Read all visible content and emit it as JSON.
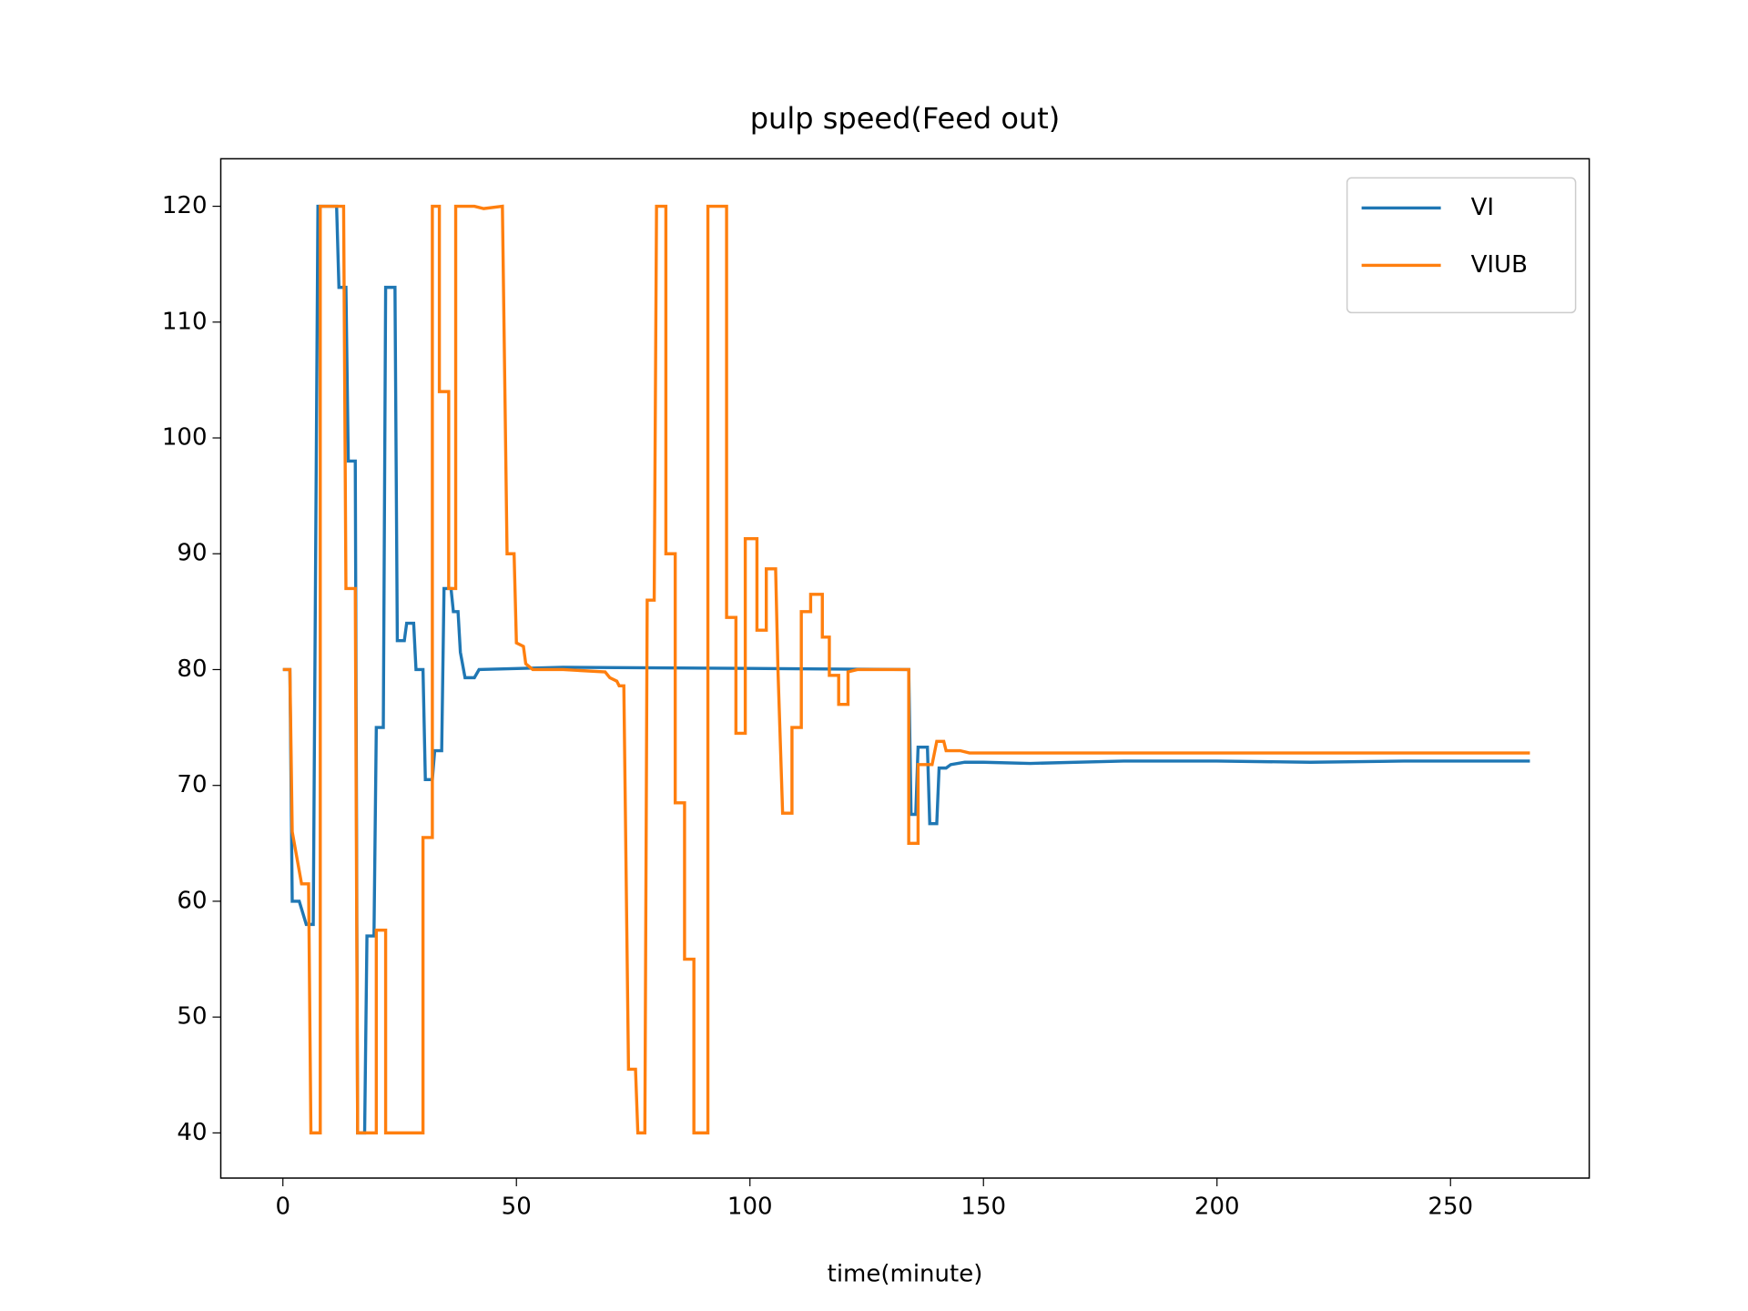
{
  "chart_data": {
    "type": "line",
    "title": "pulp speed(Feed out)",
    "xlabel": "time(minute)",
    "xlim": [
      -13.3,
      279.7
    ],
    "ylim": [
      36.1,
      124.1
    ],
    "xticks": [
      0,
      50,
      100,
      150,
      200,
      250
    ],
    "yticks": [
      40,
      50,
      60,
      70,
      80,
      90,
      100,
      110,
      120
    ],
    "legend": "upper right",
    "grid": false,
    "series": [
      {
        "name": "VI",
        "color": "#1f77b4",
        "x": [
          0,
          1.5,
          2,
          3.5,
          5,
          6.5,
          7.5,
          11.5,
          12,
          13.5,
          14,
          15.5,
          16,
          17.5,
          18,
          19.5,
          20,
          21.5,
          22,
          24,
          24.5,
          26,
          26.5,
          28,
          28.5,
          30,
          30.5,
          32,
          32.5,
          34,
          34.5,
          36,
          36.5,
          37.5,
          38,
          39,
          41,
          42,
          60,
          100,
          134,
          134.5,
          135.5,
          136,
          138,
          138.5,
          140,
          140.5,
          142,
          143,
          146,
          150,
          160,
          180,
          200,
          220,
          240,
          267
        ],
        "values": [
          80,
          80,
          60,
          60,
          58,
          58,
          120,
          120,
          113,
          113,
          98,
          98,
          40,
          40,
          57,
          57,
          75,
          75,
          113,
          113,
          82.5,
          82.5,
          84,
          84,
          80,
          80,
          70.5,
          70.5,
          73,
          73,
          87,
          87,
          85,
          85,
          81.5,
          79.3,
          79.3,
          80,
          80.2,
          80.1,
          80,
          67.5,
          67.5,
          73.3,
          73.3,
          66.7,
          66.7,
          71.5,
          71.5,
          71.8,
          72,
          72,
          71.9,
          72.1,
          72.1,
          72,
          72.1,
          72.1
        ]
      },
      {
        "name": "VIUB",
        "color": "#ff7f0e",
        "x": [
          0,
          1.5,
          2,
          4,
          5.5,
          6,
          8,
          8,
          13,
          13.5,
          15.5,
          16,
          20,
          20,
          22,
          22,
          30,
          30,
          32,
          32,
          33.5,
          33.5,
          35.5,
          35.5,
          37,
          37,
          41,
          43,
          47,
          48,
          49.5,
          50,
          51.5,
          52,
          53.5,
          60,
          69,
          70,
          71.5,
          72,
          73,
          74,
          75.5,
          76,
          77.5,
          78,
          79.5,
          80,
          82,
          82,
          84,
          84,
          86,
          86,
          88,
          88,
          91,
          91,
          95,
          95,
          97,
          97,
          99,
          99,
          101.5,
          101.5,
          103.5,
          103.5,
          105.5,
          106,
          107,
          109,
          109,
          111,
          111,
          113,
          113,
          115.5,
          115.5,
          117,
          117,
          119,
          119,
          121,
          121,
          123,
          134,
          134,
          136,
          136,
          139,
          140,
          141.5,
          142,
          145,
          147,
          160,
          267
        ],
        "values": [
          80,
          80,
          66,
          61.5,
          61.5,
          40,
          40,
          120,
          120,
          87,
          87,
          40,
          40,
          57.5,
          57.5,
          40,
          40,
          65.5,
          65.5,
          120,
          120,
          104,
          104,
          87,
          87,
          120,
          120,
          119.8,
          120,
          90,
          90,
          82.3,
          82,
          80.5,
          80,
          80,
          79.8,
          79.3,
          79,
          78.6,
          78.6,
          45.5,
          45.5,
          40,
          40,
          86,
          86,
          120,
          120,
          90,
          90,
          68.5,
          68.5,
          55,
          55,
          40,
          40,
          120,
          120,
          84.5,
          84.5,
          74.5,
          74.5,
          91.3,
          91.3,
          83.4,
          83.4,
          88.7,
          88.7,
          80,
          67.6,
          67.6,
          75,
          75,
          85,
          85,
          86.5,
          86.5,
          82.8,
          82.8,
          79.5,
          79.5,
          77,
          77,
          79.8,
          80,
          80,
          65,
          65,
          71.8,
          71.8,
          73.8,
          73.8,
          73,
          73,
          72.8,
          72.8,
          72.8
        ]
      }
    ]
  }
}
